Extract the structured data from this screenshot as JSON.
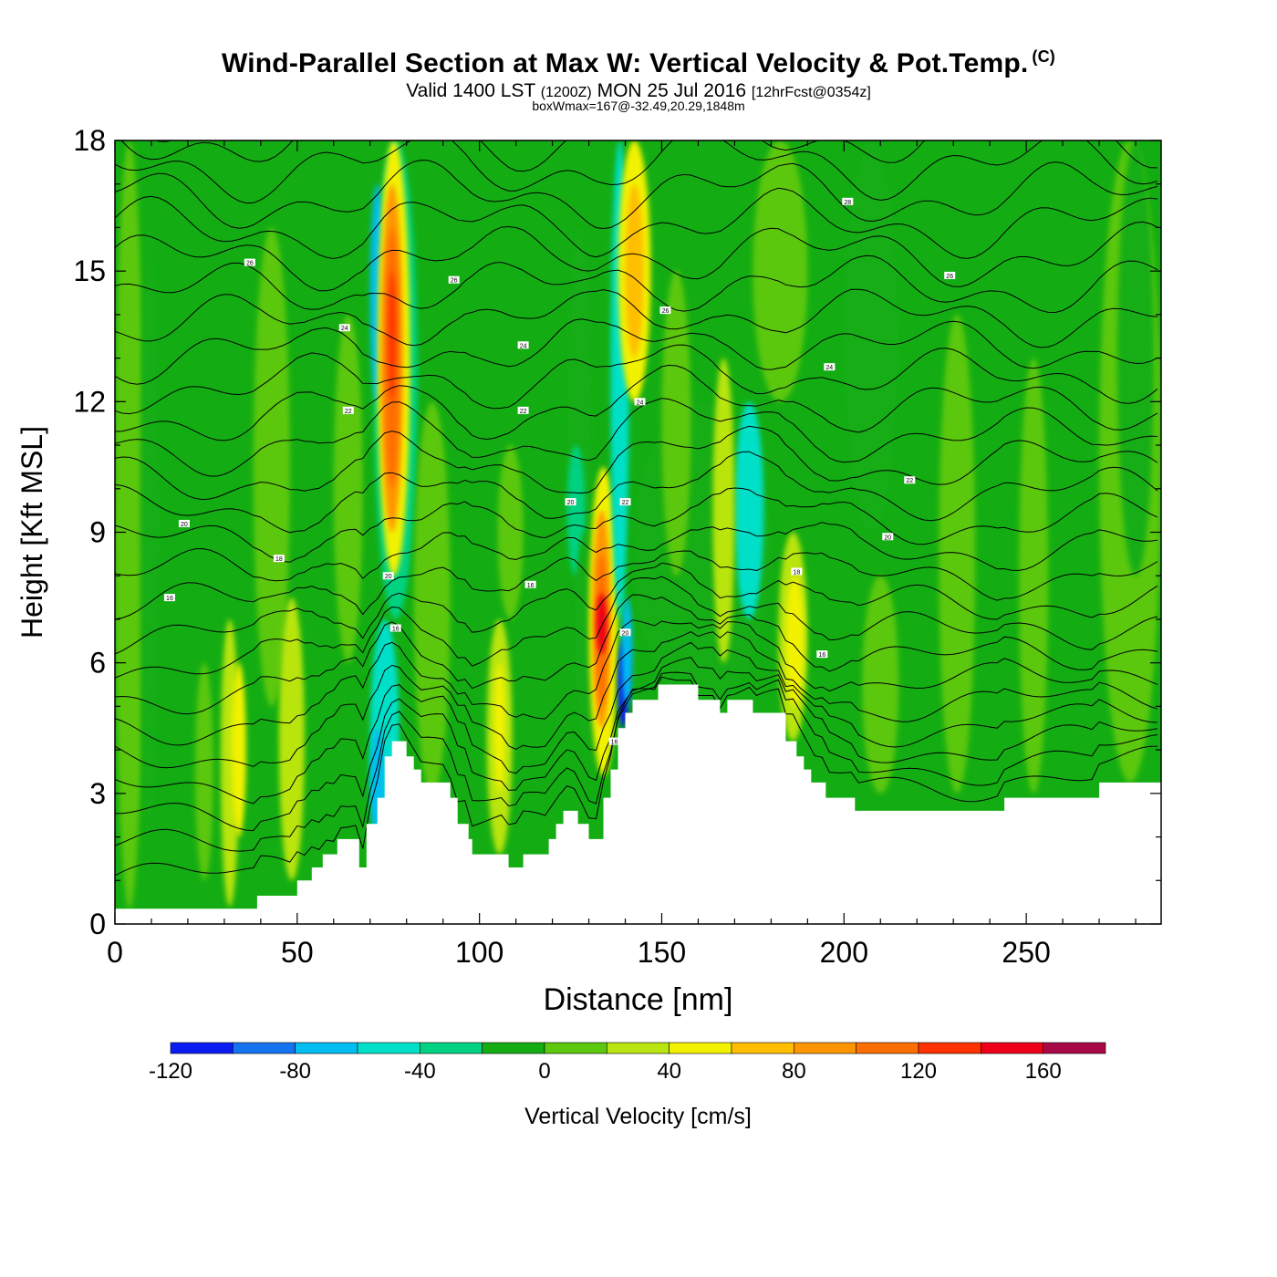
{
  "header": {
    "title": "Wind-Parallel Section at Max W: Vertical Velocity & Pot.Temp.",
    "title_mark": "(C)",
    "subtitle_valid": "Valid 1400 LST",
    "subtitle_utc": "(1200Z)",
    "subtitle_date": "MON 25 Jul 2016",
    "subtitle_fcst": "[12hrFcst@0354z]",
    "info": "boxWmax=167@-32.49,20.29,1848m"
  },
  "chart_data": {
    "type": "heatmap",
    "xlabel": "Distance [nm]",
    "ylabel": "Height [Kft MSL]",
    "xlim": [
      0,
      287
    ],
    "ylim": [
      0,
      18
    ],
    "xticks": [
      0,
      50,
      100,
      150,
      200,
      250
    ],
    "yticks": [
      0,
      3,
      6,
      9,
      12,
      15,
      18
    ],
    "background_level_color": "#13ad13",
    "terrain_kft": [
      [
        0,
        0.35
      ],
      [
        39,
        0.35
      ],
      [
        39,
        0.65
      ],
      [
        50,
        0.65
      ],
      [
        50,
        1.0
      ],
      [
        54,
        1.0
      ],
      [
        54,
        1.3
      ],
      [
        57,
        1.3
      ],
      [
        57,
        1.6
      ],
      [
        61,
        1.6
      ],
      [
        61,
        1.95
      ],
      [
        67,
        1.95
      ],
      [
        67,
        1.3
      ],
      [
        69,
        1.3
      ],
      [
        69,
        2.3
      ],
      [
        72,
        2.3
      ],
      [
        72,
        2.9
      ],
      [
        74,
        2.9
      ],
      [
        74,
        3.85
      ],
      [
        76,
        3.85
      ],
      [
        76,
        4.2
      ],
      [
        80,
        4.2
      ],
      [
        80,
        3.85
      ],
      [
        82,
        3.85
      ],
      [
        82,
        3.55
      ],
      [
        84,
        3.55
      ],
      [
        84,
        3.25
      ],
      [
        92,
        3.25
      ],
      [
        92,
        2.9
      ],
      [
        94,
        2.9
      ],
      [
        94,
        2.3
      ],
      [
        97,
        2.3
      ],
      [
        97,
        1.95
      ],
      [
        98,
        1.95
      ],
      [
        98,
        1.6
      ],
      [
        108,
        1.6
      ],
      [
        108,
        1.3
      ],
      [
        112,
        1.3
      ],
      [
        112,
        1.6
      ],
      [
        119,
        1.6
      ],
      [
        119,
        1.95
      ],
      [
        121,
        1.95
      ],
      [
        121,
        2.3
      ],
      [
        123,
        2.3
      ],
      [
        123,
        2.6
      ],
      [
        127,
        2.6
      ],
      [
        127,
        2.3
      ],
      [
        130,
        2.3
      ],
      [
        130,
        1.95
      ],
      [
        134,
        1.95
      ],
      [
        134,
        2.9
      ],
      [
        136,
        2.9
      ],
      [
        136,
        3.55
      ],
      [
        138,
        3.55
      ],
      [
        138,
        4.5
      ],
      [
        140,
        4.5
      ],
      [
        140,
        4.85
      ],
      [
        142,
        4.85
      ],
      [
        142,
        5.15
      ],
      [
        149,
        5.15
      ],
      [
        149,
        5.5
      ],
      [
        160,
        5.5
      ],
      [
        160,
        5.15
      ],
      [
        166,
        5.15
      ],
      [
        166,
        4.85
      ],
      [
        168,
        4.85
      ],
      [
        168,
        5.15
      ],
      [
        175,
        5.15
      ],
      [
        175,
        4.85
      ],
      [
        184,
        4.85
      ],
      [
        184,
        4.2
      ],
      [
        187,
        4.2
      ],
      [
        187,
        3.85
      ],
      [
        189,
        3.85
      ],
      [
        189,
        3.55
      ],
      [
        191,
        3.55
      ],
      [
        191,
        3.25
      ],
      [
        195,
        3.25
      ],
      [
        195,
        2.9
      ],
      [
        203,
        2.9
      ],
      [
        203,
        2.6
      ],
      [
        244,
        2.6
      ],
      [
        244,
        2.9
      ],
      [
        270,
        2.9
      ],
      [
        270,
        3.25
      ],
      [
        287,
        3.25
      ]
    ],
    "vertical_velocity_cells": [
      {
        "x": [
          0,
          8
        ],
        "y": [
          0.35,
          18
        ],
        "w": 10
      },
      {
        "x": [
          7,
          12
        ],
        "y": [
          2,
          16
        ],
        "w": -8
      },
      {
        "x": [
          22,
          27
        ],
        "y": [
          1,
          6
        ],
        "w": 10
      },
      {
        "x": [
          29,
          34
        ],
        "y": [
          0.4,
          7
        ],
        "w": 30
      },
      {
        "x": [
          32,
          36
        ],
        "y": [
          2,
          6
        ],
        "w": 45
      },
      {
        "x": [
          38,
          48
        ],
        "y": [
          5,
          16
        ],
        "w": 10
      },
      {
        "x": [
          45,
          52
        ],
        "y": [
          1,
          7.5
        ],
        "w": 30
      },
      {
        "x": [
          60,
          68
        ],
        "y": [
          6,
          14
        ],
        "w": 10
      },
      {
        "x": [
          70,
          78
        ],
        "y": [
          1.5,
          7
        ],
        "w": -45
      },
      {
        "x": [
          70,
          74
        ],
        "y": [
          2,
          4.5
        ],
        "w": -65
      },
      {
        "x": [
          71,
          83
        ],
        "y": [
          7,
          18
        ],
        "w": -30
      },
      {
        "x": [
          70,
          74
        ],
        "y": [
          12,
          17
        ],
        "w": -65
      },
      {
        "x": [
          72,
          81
        ],
        "y": [
          8,
          18
        ],
        "w": 50
      },
      {
        "x": [
          73,
          79
        ],
        "y": [
          9,
          17
        ],
        "w": 80
      },
      {
        "x": [
          74,
          78
        ],
        "y": [
          10,
          16
        ],
        "w": 110
      },
      {
        "x": [
          75,
          77
        ],
        "y": [
          12,
          15
        ],
        "w": 125
      },
      {
        "x": [
          82,
          92
        ],
        "y": [
          3,
          12
        ],
        "w": 10
      },
      {
        "x": [
          102,
          109
        ],
        "y": [
          1.6,
          7
        ],
        "w": 30
      },
      {
        "x": [
          104,
          107
        ],
        "y": [
          3,
          6
        ],
        "w": 45
      },
      {
        "x": [
          105,
          112
        ],
        "y": [
          7,
          11
        ],
        "w": 10
      },
      {
        "x": [
          124,
          131
        ],
        "y": [
          7,
          16
        ],
        "w": -8
      },
      {
        "x": [
          124,
          129
        ],
        "y": [
          8,
          11
        ],
        "w": -30
      },
      {
        "x": [
          126,
          132
        ],
        "y": [
          4,
          9
        ],
        "w": -15
      },
      {
        "x": [
          130,
          138
        ],
        "y": [
          3.4,
          10.5
        ],
        "w": 50
      },
      {
        "x": [
          131,
          136
        ],
        "y": [
          4.5,
          9.5
        ],
        "w": 80
      },
      {
        "x": [
          132,
          135
        ],
        "y": [
          5,
          8.5
        ],
        "w": 115
      },
      {
        "x": [
          132,
          135
        ],
        "y": [
          6.2,
          7.6
        ],
        "w": 145
      },
      {
        "x": [
          138,
          141
        ],
        "y": [
          4.5,
          6.5
        ],
        "w": -110
      },
      {
        "x": [
          139,
          142
        ],
        "y": [
          5,
          7.5
        ],
        "w": -80
      },
      {
        "x": [
          136,
          141
        ],
        "y": [
          7,
          18
        ],
        "w": -45
      },
      {
        "x": [
          138,
          147
        ],
        "y": [
          12,
          18
        ],
        "w": 50
      },
      {
        "x": [
          140,
          145
        ],
        "y": [
          13,
          17
        ],
        "w": 65
      },
      {
        "x": [
          142,
          180
        ],
        "y": [
          5,
          12
        ],
        "w": -15
      },
      {
        "x": [
          170,
          178
        ],
        "y": [
          7,
          12
        ],
        "w": -45
      },
      {
        "x": [
          150,
          158
        ],
        "y": [
          8,
          15
        ],
        "w": 10
      },
      {
        "x": [
          164,
          170
        ],
        "y": [
          6,
          13
        ],
        "w": 30
      },
      {
        "x": [
          182,
          190
        ],
        "y": [
          4.2,
          9
        ],
        "w": 30
      },
      {
        "x": [
          184,
          189
        ],
        "y": [
          5,
          8
        ],
        "w": 45
      },
      {
        "x": [
          175,
          190
        ],
        "y": [
          12,
          18
        ],
        "w": 10
      },
      {
        "x": [
          200,
          215
        ],
        "y": [
          9,
          18
        ],
        "w": -8
      },
      {
        "x": [
          205,
          215
        ],
        "y": [
          3,
          8
        ],
        "w": 10
      },
      {
        "x": [
          226,
          236
        ],
        "y": [
          3,
          14
        ],
        "w": 10
      },
      {
        "x": [
          248,
          256
        ],
        "y": [
          3,
          13
        ],
        "w": 10
      },
      {
        "x": [
          270,
          287
        ],
        "y": [
          3.25,
          18
        ],
        "w": 10
      },
      {
        "x": [
          275,
          285
        ],
        "y": [
          8,
          18
        ],
        "w": -8
      }
    ],
    "theta_contour_labels": [
      {
        "x": 15,
        "y": 7.5,
        "label": "16"
      },
      {
        "x": 19,
        "y": 9.2,
        "label": "20"
      },
      {
        "x": 45,
        "y": 8.4,
        "label": "18"
      },
      {
        "x": 37,
        "y": 15.2,
        "label": "26"
      },
      {
        "x": 63,
        "y": 13.7,
        "label": "24"
      },
      {
        "x": 64,
        "y": 11.8,
        "label": "22"
      },
      {
        "x": 75,
        "y": 8.0,
        "label": "20"
      },
      {
        "x": 77,
        "y": 6.8,
        "label": "16"
      },
      {
        "x": 93,
        "y": 14.8,
        "label": "26"
      },
      {
        "x": 112,
        "y": 13.3,
        "label": "24"
      },
      {
        "x": 112,
        "y": 11.8,
        "label": "22"
      },
      {
        "x": 114,
        "y": 7.8,
        "label": "16"
      },
      {
        "x": 125,
        "y": 9.7,
        "label": "20"
      },
      {
        "x": 140,
        "y": 6.7,
        "label": "20"
      },
      {
        "x": 140,
        "y": 9.7,
        "label": "22"
      },
      {
        "x": 137,
        "y": 4.2,
        "label": "16"
      },
      {
        "x": 144,
        "y": 12.0,
        "label": "24"
      },
      {
        "x": 151,
        "y": 14.1,
        "label": "26"
      },
      {
        "x": 187,
        "y": 8.1,
        "label": "18"
      },
      {
        "x": 194,
        "y": 6.2,
        "label": "16"
      },
      {
        "x": 196,
        "y": 12.8,
        "label": "24"
      },
      {
        "x": 201,
        "y": 16.6,
        "label": "28"
      },
      {
        "x": 212,
        "y": 8.9,
        "label": "20"
      },
      {
        "x": 218,
        "y": 10.2,
        "label": "22"
      },
      {
        "x": 229,
        "y": 14.9,
        "label": "26"
      }
    ],
    "colorbar": {
      "label": "Vertical Velocity [cm/s]",
      "boundaries": [
        -120,
        -100,
        -80,
        -60,
        -40,
        -20,
        0,
        20,
        40,
        60,
        80,
        100,
        120,
        140,
        160,
        180
      ],
      "colors": [
        "#0a1cf2",
        "#1673f0",
        "#00bdf2",
        "#00e0c8",
        "#00d282",
        "#13ad13",
        "#5cc80e",
        "#b9e511",
        "#f2f200",
        "#ffbe00",
        "#ff9600",
        "#ff6e00",
        "#ff3200",
        "#ee0018",
        "#a80848"
      ],
      "tick_values": [
        -120,
        -80,
        -40,
        0,
        40,
        80,
        120,
        160
      ]
    }
  }
}
